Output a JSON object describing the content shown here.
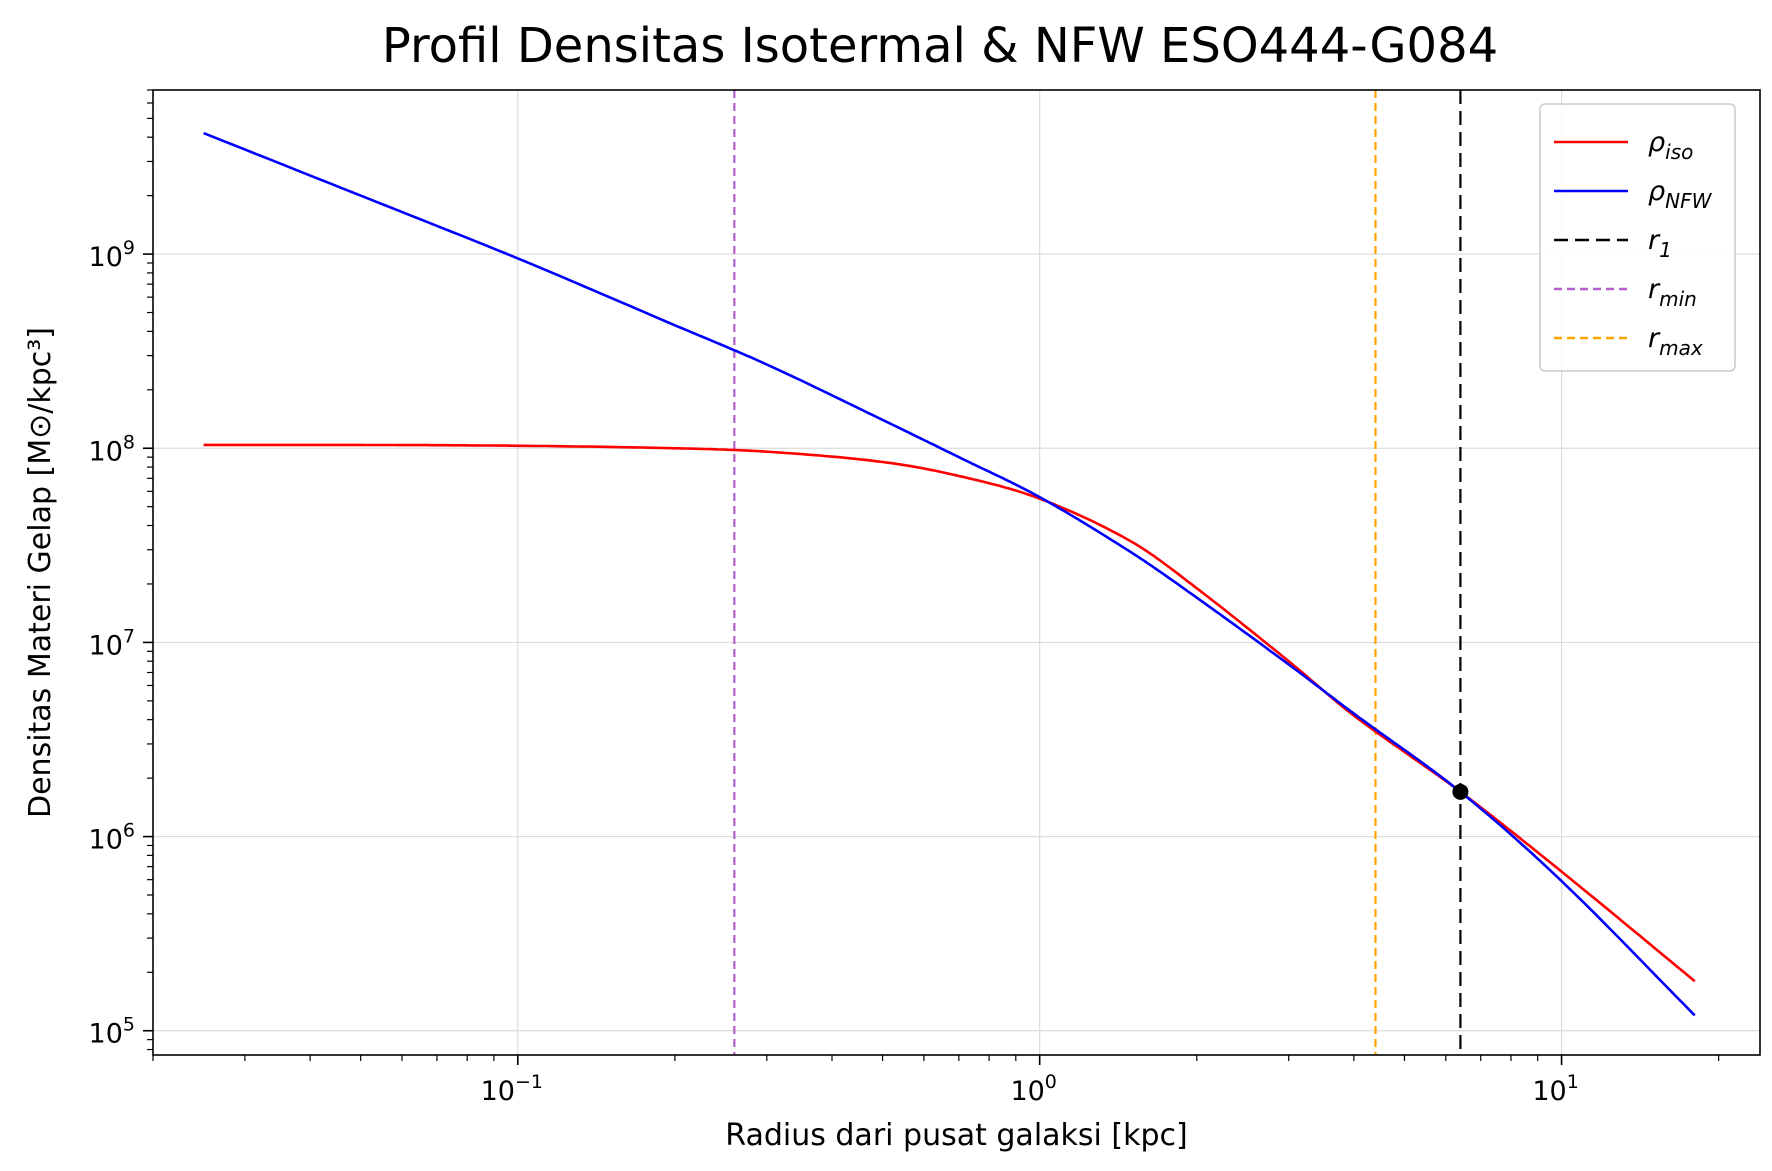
{
  "chart_data": {
    "type": "line",
    "title": "Profil Densitas Isotermal & NFW ESO444-G084",
    "xlabel": "Radius dari pusat galaksi [kpc]",
    "ylabel": "Densitas Materi Gelap [M⊙/kpc³]",
    "xscale": "log",
    "yscale": "log",
    "xlim": [
      0.02,
      24
    ],
    "ylim": [
      75000,
      7000000000
    ],
    "x_ticks": [
      {
        "base": "10",
        "exp": "−1",
        "value": 0.1
      },
      {
        "base": "10",
        "exp": "0",
        "value": 1
      },
      {
        "base": "10",
        "exp": "1",
        "value": 10
      }
    ],
    "y_ticks": [
      {
        "base": "10",
        "exp": "5",
        "value": 100000
      },
      {
        "base": "10",
        "exp": "6",
        "value": 1000000
      },
      {
        "base": "10",
        "exp": "7",
        "value": 10000000
      },
      {
        "base": "10",
        "exp": "8",
        "value": 100000000
      },
      {
        "base": "10",
        "exp": "9",
        "value": 1000000000
      }
    ],
    "grid": true,
    "legend_position": "top-right",
    "series": [
      {
        "name": "ρiso",
        "legend_main": "ρ",
        "legend_sub": "iso",
        "color": "#ff0000",
        "style": "solid",
        "x": [
          0.025,
          0.05,
          0.1,
          0.2,
          0.3,
          0.5,
          0.7,
          1.0,
          1.5,
          2.0,
          3.0,
          4.0,
          6.4,
          10.0,
          18.0
        ],
        "y": [
          104000000,
          104000000,
          103000000,
          100000000,
          96000000,
          85000000,
          72000000,
          55000000,
          33000000,
          19000000,
          8000000,
          4200000,
          1700000,
          660000,
          180000
        ]
      },
      {
        "name": "ρNFW",
        "legend_main": "ρ",
        "legend_sub": "NFW",
        "color": "#0000ff",
        "style": "solid",
        "x": [
          0.025,
          0.05,
          0.1,
          0.2,
          0.3,
          0.5,
          0.7,
          1.0,
          1.5,
          2.0,
          3.0,
          4.0,
          6.4,
          10.0,
          18.0
        ],
        "y": [
          4200000000,
          2000000000,
          950000000,
          430000000,
          270000000,
          140000000,
          90000000,
          56000000,
          29000000,
          17000000,
          7700000,
          4300000,
          1700000,
          590000,
          120000
        ]
      }
    ],
    "vlines": [
      {
        "name": "r1",
        "legend_main": "r",
        "legend_sub": "1",
        "x": 6.4,
        "color": "#000000",
        "style": "longdash"
      },
      {
        "name": "rmin",
        "legend_main": "r",
        "legend_sub": "min",
        "x": 0.26,
        "color": "#b660cd",
        "style": "dashed"
      },
      {
        "name": "rmax",
        "legend_main": "r",
        "legend_sub": "max",
        "x": 4.4,
        "color": "#ffa500",
        "style": "dashed"
      }
    ],
    "markers": [
      {
        "x": 6.4,
        "y": 1700000,
        "color": "#000000"
      }
    ]
  }
}
